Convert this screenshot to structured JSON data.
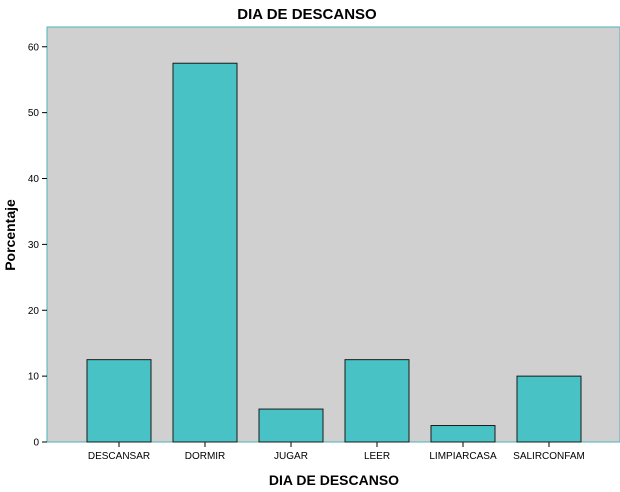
{
  "chart_data": {
    "type": "bar",
    "title": "DIA DE DESCANSO",
    "xlabel": "DIA DE DESCANSO",
    "ylabel": "Porcentaje",
    "categories": [
      "DESCANSAR",
      "DORMIR",
      "JUGAR",
      "LEER",
      "LIMPIARCASA",
      "SALIRCONFAM"
    ],
    "values": [
      12.5,
      57.5,
      5,
      12.5,
      2.5,
      10
    ],
    "ylim": [
      0,
      63
    ],
    "yticks": [
      0,
      10,
      20,
      30,
      40,
      50,
      60
    ],
    "grid": false,
    "legend": "none",
    "colors": {
      "bar_fill": "#48c2c5",
      "bar_stroke": "#1a1a1a",
      "plot_background": "#d0d0d0",
      "plot_border": "#4ab5b8"
    }
  }
}
